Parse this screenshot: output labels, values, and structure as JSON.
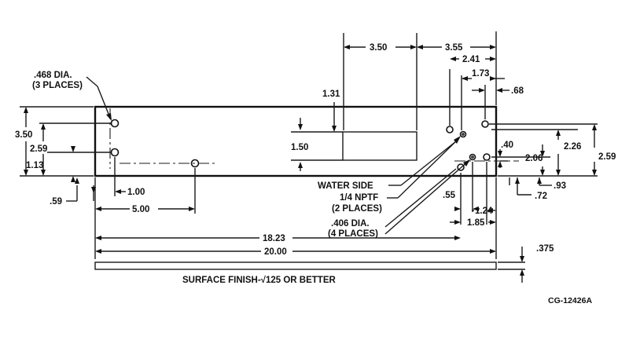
{
  "callouts": {
    "hole_468_line1": ".468 DIA.",
    "hole_468_line2": "(3 PLACES)",
    "water_side": "WATER SIDE",
    "nptf_line1": "1/4 NPTF",
    "nptf_line2": "(2 PLACES)",
    "hole_406_line1": ".406 DIA.",
    "hole_406_line2": "(4 PLACES)"
  },
  "dimensions": {
    "d_3_50_top": "3.50",
    "d_3_55": "3.55",
    "d_2_41": "2.41",
    "d_1_73": "1.73",
    "d_68": ".68",
    "d_1_31": "1.31",
    "d_1_50": "1.50",
    "d_3_50_left": "3.50",
    "d_2_59_left": "2.59",
    "d_1_13": "1.13",
    "d_59": ".59",
    "d_1_00": "1.00",
    "d_5_00": "5.00",
    "d_18_23": "18.23",
    "d_20_00": "20.00",
    "d_375": ".375",
    "d_40": ".40",
    "d_2_26": "2.26",
    "d_2_06": "2.06",
    "d_2_59_right": "2.59",
    "d_72": ".72",
    "d_93": ".93",
    "d_55": ".55",
    "d_1_24": "1.24",
    "d_1_85": "1.85"
  },
  "notes": {
    "surface_finish": "SURFACE FINISH-√125 OR BETTER",
    "drawing_id": "CG-12426A"
  }
}
